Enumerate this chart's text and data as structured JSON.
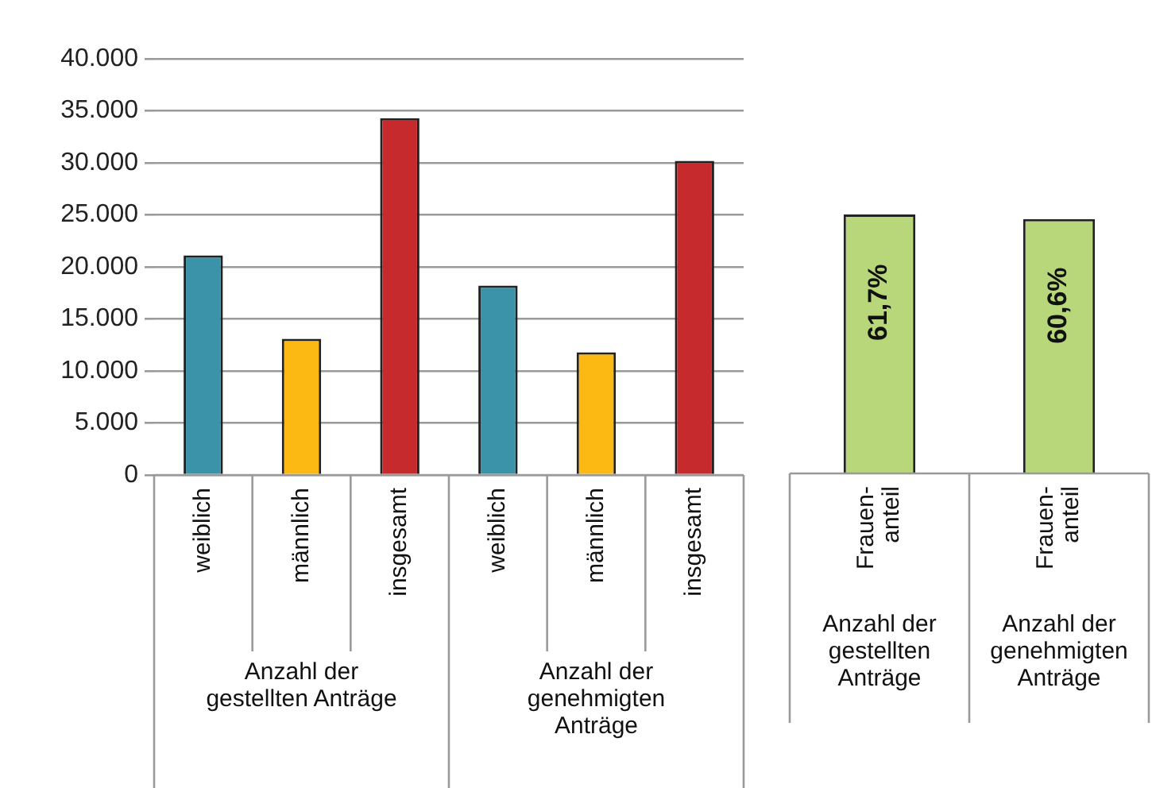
{
  "chart_data": [
    {
      "type": "bar",
      "categories": [
        "weiblich",
        "männlich",
        "insgesamt",
        "weiblich",
        "männlich",
        "insgesamt"
      ],
      "values": [
        21100,
        13100,
        34300,
        18200,
        11800,
        30200
      ],
      "colors": [
        "#3a93a8",
        "#fdb913",
        "#c62a2d",
        "#3a93a8",
        "#fdb913",
        "#c62a2d"
      ],
      "ylim": [
        0,
        40000
      ],
      "yticks": [
        {
          "value": 0,
          "label": "0"
        },
        {
          "value": 5000,
          "label": "5.000"
        },
        {
          "value": 10000,
          "label": "10.000"
        },
        {
          "value": 15000,
          "label": "15.000"
        },
        {
          "value": 20000,
          "label": "20.000"
        },
        {
          "value": 25000,
          "label": "25.000"
        },
        {
          "value": 30000,
          "label": "30.000"
        },
        {
          "value": 35000,
          "label": "35.000"
        },
        {
          "value": 40000,
          "label": "40.000"
        }
      ],
      "grid": "y",
      "legend": false,
      "annotations": [
        "Anzahl der\ngestellten Anträge",
        "Anzahl der\ngenehmigten\nAnträge"
      ]
    },
    {
      "type": "bar",
      "categories": [
        "Frauen-\nanteil",
        "Frauen-\nanteil"
      ],
      "values": [
        61.7,
        60.6
      ],
      "value_labels": [
        "61,7%",
        "60,6%"
      ],
      "colors": [
        "#b8d77a",
        "#b8d77a"
      ],
      "tick_labels": "x",
      "grid": false,
      "legend": false,
      "annotations": [
        "Anzahl der\ngestellten\nAnträge",
        "Anzahl der\ngenehmigten\nAnträge"
      ]
    }
  ]
}
